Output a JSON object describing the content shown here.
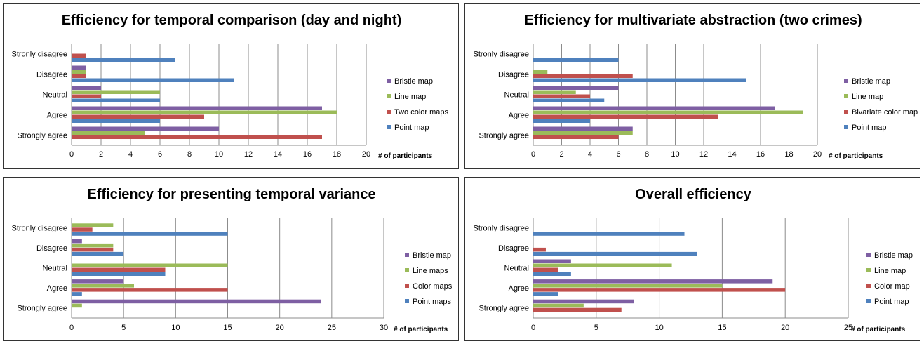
{
  "colors": {
    "bristle": "#7E5FA3",
    "line": "#9BBB59",
    "red": "#C0504D",
    "point": "#4F81BD"
  },
  "chart_data": [
    {
      "type": "bar",
      "orientation": "horizontal",
      "title": "Efficiency for temporal comparison (day and night)",
      "xlabel": "# of participants",
      "ylabel": "",
      "xlim": [
        0,
        20
      ],
      "xticks": [
        0,
        2,
        4,
        6,
        8,
        10,
        12,
        14,
        16,
        18,
        20
      ],
      "categories": [
        "Stronly disagree",
        "Disagree",
        "Neutral",
        "Agree",
        "Strongly agree"
      ],
      "series": [
        {
          "name": "Bristle map",
          "color": "#7E5FA3",
          "values": [
            0,
            1,
            2,
            17,
            10
          ]
        },
        {
          "name": "Line map",
          "color": "#9BBB59",
          "values": [
            0,
            1,
            6,
            18,
            5
          ]
        },
        {
          "name": "Two color maps",
          "color": "#C0504D",
          "values": [
            1,
            1,
            2,
            9,
            17
          ]
        },
        {
          "name": "Point map",
          "color": "#4F81BD",
          "values": [
            7,
            11,
            6,
            6,
            0
          ]
        }
      ],
      "grid": "vertical",
      "legend": "right"
    },
    {
      "type": "bar",
      "orientation": "horizontal",
      "title": "Efficiency for multivariate abstraction (two crimes)",
      "xlabel": "# of participants",
      "ylabel": "",
      "xlim": [
        0,
        20
      ],
      "xticks": [
        0,
        2,
        4,
        6,
        8,
        10,
        12,
        14,
        16,
        18,
        20
      ],
      "categories": [
        "Stronly disagree",
        "Disagree",
        "Neutral",
        "Agree",
        "Strongly agree"
      ],
      "series": [
        {
          "name": "Bristle map",
          "color": "#7E5FA3",
          "values": [
            0,
            0,
            6,
            17,
            7
          ]
        },
        {
          "name": "Line map",
          "color": "#9BBB59",
          "values": [
            0,
            1,
            3,
            19,
            7
          ]
        },
        {
          "name": "Bivariate color map",
          "color": "#C0504D",
          "values": [
            0,
            7,
            4,
            13,
            6
          ]
        },
        {
          "name": "Point map",
          "color": "#4F81BD",
          "values": [
            6,
            15,
            5,
            4,
            0
          ]
        }
      ],
      "grid": "vertical",
      "legend": "right"
    },
    {
      "type": "bar",
      "orientation": "horizontal",
      "title": "Efficiency for presenting temporal variance",
      "xlabel": "# of participants",
      "ylabel": "",
      "xlim": [
        0,
        30
      ],
      "xticks": [
        0,
        5,
        10,
        15,
        20,
        25,
        30
      ],
      "categories": [
        "Stronly disagree",
        "Disagree",
        "Neutral",
        "Agree",
        "Strongly agree"
      ],
      "series": [
        {
          "name": "Bristle map",
          "color": "#7E5FA3",
          "values": [
            0,
            1,
            0,
            5,
            24
          ]
        },
        {
          "name": "Line maps",
          "color": "#9BBB59",
          "values": [
            4,
            4,
            15,
            6,
            1
          ]
        },
        {
          "name": "Color maps",
          "color": "#C0504D",
          "values": [
            2,
            4,
            9,
            15,
            0
          ]
        },
        {
          "name": "Point maps",
          "color": "#4F81BD",
          "values": [
            15,
            5,
            9,
            1,
            0
          ]
        }
      ],
      "grid": "vertical",
      "legend": "right"
    },
    {
      "type": "bar",
      "orientation": "horizontal",
      "title": "Overall efficiency",
      "xlabel": "# of participants",
      "ylabel": "",
      "xlim": [
        0,
        25
      ],
      "xticks": [
        0,
        5,
        10,
        15,
        20,
        25
      ],
      "categories": [
        "Stronly disagree",
        "Disagree",
        "Neutral",
        "Agree",
        "Strongly agree"
      ],
      "series": [
        {
          "name": "Bristle map",
          "color": "#7E5FA3",
          "values": [
            0,
            0,
            3,
            19,
            8
          ]
        },
        {
          "name": "Line map",
          "color": "#9BBB59",
          "values": [
            0,
            0,
            11,
            15,
            4
          ]
        },
        {
          "name": "Color map",
          "color": "#C0504D",
          "values": [
            0,
            1,
            2,
            20,
            7
          ]
        },
        {
          "name": "Point map",
          "color": "#4F81BD",
          "values": [
            12,
            13,
            3,
            2,
            0
          ]
        }
      ],
      "grid": "vertical",
      "legend": "right"
    }
  ]
}
